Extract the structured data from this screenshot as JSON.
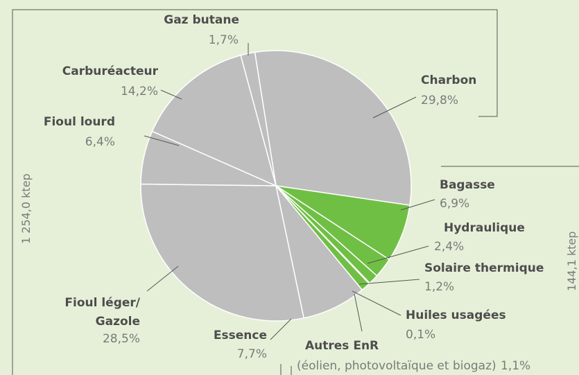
{
  "chart_data": {
    "type": "pie",
    "categories": [
      "Charbon",
      "Bagasse",
      "Hydraulique",
      "Solaire thermique",
      "Huiles usagées",
      "Autres EnR",
      "Essence",
      "Fioul léger/\nGazole",
      "Fioul lourd",
      "Carburéacteur",
      "Gaz butane"
    ],
    "values": [
      29.8,
      6.9,
      2.4,
      1.2,
      0.1,
      1.1,
      7.7,
      28.5,
      6.4,
      14.2,
      1.7
    ],
    "value_labels": [
      "29,8%",
      "6,9%",
      "2,4%",
      "1,2%",
      "0,1%",
      "1,1%",
      "7,7%",
      "28,5%",
      "6,4%",
      "14,2%",
      "1,7%"
    ],
    "colors": [
      "#bebebf",
      "#70bf45",
      "#70bf45",
      "#70bf45",
      "#70bf45",
      "#70bf45",
      "#bebebf",
      "#bebebf",
      "#bebebf",
      "#bebebf",
      "#bebebf"
    ],
    "annotation": "(éolien, photovoltaïque et biogaz)",
    "side_labels": [
      "1 254,0 ktep",
      "144,1 ktep"
    ]
  }
}
